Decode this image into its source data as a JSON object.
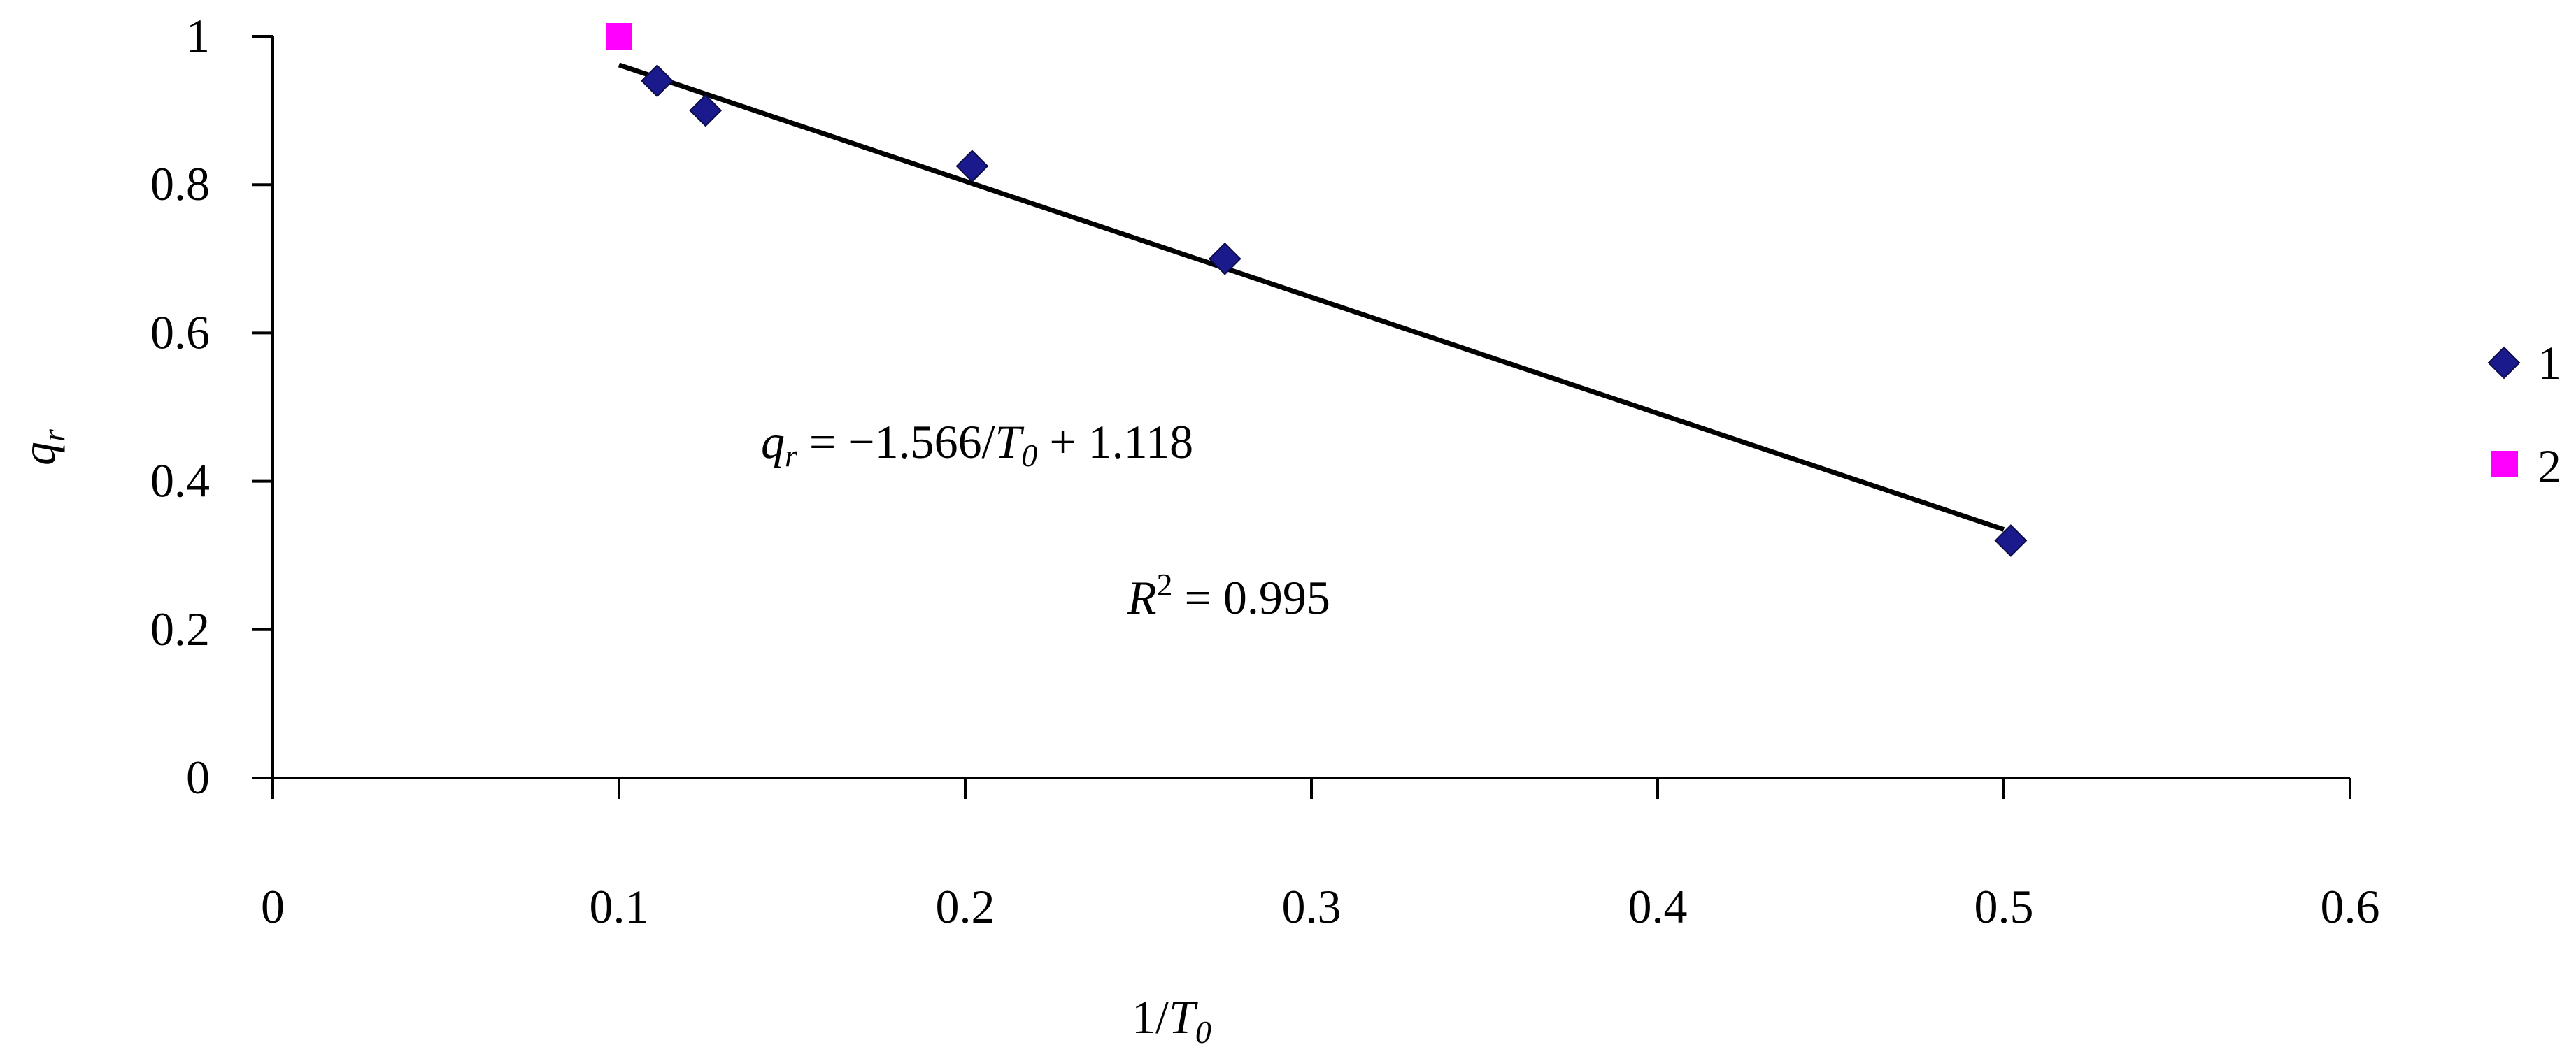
{
  "chart_data": {
    "type": "scatter",
    "xlabel": {
      "prefix": "1/",
      "var": "T",
      "sub": "0"
    },
    "ylabel": {
      "var": "q",
      "sub": "r"
    },
    "xlim": [
      0,
      0.6
    ],
    "ylim": [
      0,
      1
    ],
    "x_ticks": [
      "0",
      "0.1",
      "0.2",
      "0.3",
      "0.4",
      "0.5",
      "0.6"
    ],
    "y_ticks": [
      "0",
      "0.2",
      "0.4",
      "0.6",
      "0.8",
      "1"
    ],
    "grid": false,
    "legend_position": "right",
    "series": [
      {
        "name": "1",
        "marker": "diamond",
        "color": "#1a1a8c",
        "points": [
          {
            "x": 0.111,
            "y": 0.94
          },
          {
            "x": 0.125,
            "y": 0.9
          },
          {
            "x": 0.202,
            "y": 0.825
          },
          {
            "x": 0.275,
            "y": 0.7
          },
          {
            "x": 0.502,
            "y": 0.32
          }
        ]
      },
      {
        "name": "2",
        "marker": "square",
        "color": "#ff00ff",
        "points": [
          {
            "x": 0.1,
            "y": 1.0
          }
        ]
      }
    ],
    "trendline": {
      "slope": -1.566,
      "intercept": 1.118,
      "x_range": [
        0.1,
        0.5
      ],
      "color": "#000000"
    },
    "annotations": {
      "equation": {
        "lhs_var": "q",
        "lhs_sub": "r",
        "mid": " = −1.566/",
        "rhs_var": "T",
        "rhs_sub": "0",
        "tail": " + 1.118"
      },
      "r2": {
        "var": "R",
        "sup": "2",
        "tail": " = 0.995"
      }
    }
  }
}
